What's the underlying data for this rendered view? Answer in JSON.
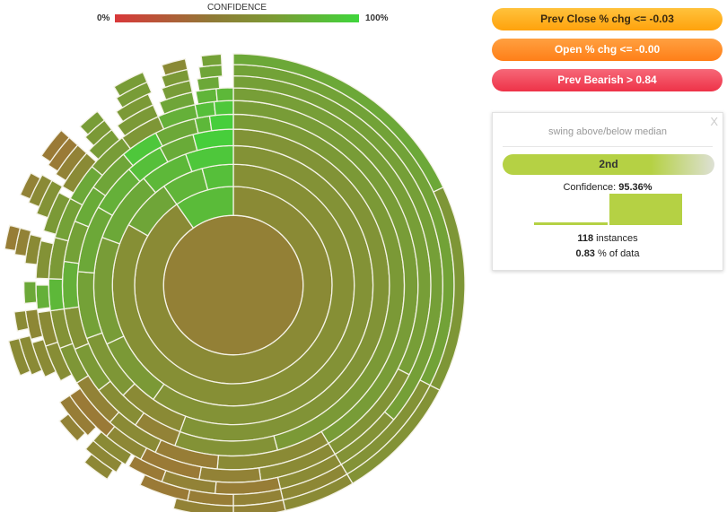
{
  "chart_data": {
    "type": "sunburst",
    "legend": {
      "title": "CONFIDENCE",
      "min_label": "0%",
      "max_label": "100%",
      "colors": [
        "#d9383a",
        "#8a8a35",
        "#3fd63c"
      ]
    },
    "rings": [
      [
        [
          0,
          360,
          0.44
        ]
      ],
      [
        [
          0,
          325,
          0.5
        ],
        [
          325,
          360,
          0.82
        ]
      ],
      [
        [
          0,
          300,
          0.53
        ],
        [
          300,
          325,
          0.68
        ],
        [
          325,
          345,
          0.78
        ],
        [
          345,
          360,
          0.85
        ]
      ],
      [
        [
          0,
          215,
          0.55
        ],
        [
          215,
          245,
          0.6
        ],
        [
          245,
          290,
          0.62
        ],
        [
          290,
          320,
          0.7
        ],
        [
          320,
          340,
          0.8
        ],
        [
          340,
          360,
          0.9
        ]
      ],
      [
        [
          0,
          200,
          0.56
        ],
        [
          200,
          225,
          0.5
        ],
        [
          225,
          250,
          0.58
        ],
        [
          250,
          275,
          0.65
        ],
        [
          275,
          300,
          0.7
        ],
        [
          300,
          318,
          0.75
        ],
        [
          318,
          332,
          0.85
        ],
        [
          332,
          345,
          0.72
        ],
        [
          345,
          360,
          0.95
        ]
      ],
      [
        [
          0,
          165,
          0.6
        ],
        [
          165,
          200,
          0.55
        ],
        [
          200,
          215,
          0.45
        ],
        [
          215,
          232,
          0.52
        ],
        [
          232,
          248,
          0.6
        ],
        [
          248,
          262,
          0.55
        ],
        [
          262,
          278,
          0.75
        ],
        [
          278,
          292,
          0.65
        ],
        [
          292,
          305,
          0.72
        ],
        [
          305,
          320,
          0.68
        ],
        [
          320,
          333,
          0.9
        ],
        [
          333,
          347,
          0.7
        ],
        [
          347,
          352,
          0.8
        ],
        [
          352,
          360,
          0.95
        ]
      ],
      [
        [
          0,
          149,
          0.62
        ],
        [
          149,
          185,
          0.5
        ],
        [
          185,
          205,
          0.42
        ],
        [
          205,
          222,
          0.5
        ],
        [
          222,
          238,
          0.45
        ],
        [
          238,
          250,
          0.58
        ],
        [
          250,
          262,
          0.55
        ],
        [
          262,
          272,
          0.8
        ],
        [
          272,
          285,
          0.6
        ],
        [
          285,
          298,
          0.65
        ],
        [
          298,
          310,
          0.7
        ],
        [
          310,
          323,
          0.62
        ],
        [
          323,
          336,
          0.58
        ],
        [
          336,
          348,
          0.75
        ],
        [
          348,
          354,
          0.85
        ],
        [
          354,
          360,
          0.9
        ]
      ],
      [
        [
          0,
          117,
          0.63
        ],
        [
          117,
          149,
          0.56
        ],
        [
          149,
          172,
          0.5
        ],
        [
          172,
          190,
          0.45
        ],
        [
          190,
          208,
          0.4
        ],
        [
          208,
          220,
          0.48
        ],
        [
          220,
          236,
          0.4
        ],
        [
          241,
          252,
          0.52
        ],
        [
          252,
          262,
          0.5
        ],
        [
          263,
          270,
          0.75
        ],
        [
          272,
          283,
          0.55
        ],
        [
          286,
          298,
          0.6
        ],
        [
          300,
          312,
          0.5
        ],
        [
          313,
          322,
          0.62
        ],
        [
          324,
          336,
          0.6
        ],
        [
          338,
          348,
          0.68
        ],
        [
          349,
          355,
          0.78
        ],
        [
          355,
          360,
          0.8
        ]
      ],
      [
        [
          0,
          130,
          0.64
        ],
        [
          130,
          149,
          0.55
        ],
        [
          149,
          167,
          0.5
        ],
        [
          167,
          185,
          0.42
        ],
        [
          185,
          200,
          0.45
        ],
        [
          200,
          210,
          0.4
        ],
        [
          211,
          222,
          0.5
        ],
        [
          224,
          236,
          0.42
        ],
        [
          244,
          254,
          0.5
        ],
        [
          255,
          263,
          0.48
        ],
        [
          265,
          271,
          0.7
        ],
        [
          276,
          284,
          0.5
        ],
        [
          290,
          300,
          0.55
        ],
        [
          302,
          312,
          0.45
        ],
        [
          315,
          322,
          0.6
        ],
        [
          326,
          336,
          0.6
        ],
        [
          340,
          348,
          0.62
        ],
        [
          350,
          356,
          0.7
        ]
      ],
      [
        [
          0,
          117,
          0.66
        ],
        [
          117,
          149,
          0.55
        ],
        [
          149,
          167,
          0.48
        ],
        [
          167,
          180,
          0.45
        ],
        [
          180,
          192,
          0.42
        ],
        [
          192,
          205,
          0.4
        ],
        [
          212,
          222,
          0.48
        ],
        [
          225,
          232,
          0.45
        ],
        [
          246,
          256,
          0.5
        ],
        [
          258,
          263,
          0.5
        ],
        [
          278,
          285,
          0.45
        ],
        [
          292,
          300,
          0.5
        ],
        [
          303,
          312,
          0.4
        ],
        [
          316,
          322,
          0.62
        ],
        [
          328,
          337,
          0.62
        ],
        [
          341,
          348,
          0.6
        ],
        [
          351,
          357,
          0.68
        ]
      ],
      [
        [
          0,
          65,
          0.7
        ],
        [
          65,
          117,
          0.58
        ],
        [
          117,
          149,
          0.55
        ],
        [
          149,
          167,
          0.5
        ],
        [
          167,
          180,
          0.45
        ],
        [
          180,
          195,
          0.45
        ],
        [
          213,
          220,
          0.48
        ],
        [
          247,
          256,
          0.5
        ],
        [
          279,
          285,
          0.42
        ],
        [
          293,
          299,
          0.45
        ],
        [
          304,
          312,
          0.4
        ],
        [
          329,
          337,
          0.62
        ],
        [
          342,
          348,
          0.5
        ],
        [
          352,
          357,
          0.65
        ]
      ]
    ]
  },
  "filters": [
    {
      "label": "Prev Close % chg <= -0.03"
    },
    {
      "label": "Open % chg <= -0.00"
    },
    {
      "label": "Prev Bearish > 0.84"
    }
  ],
  "panel": {
    "close": "X",
    "title": "swing above/below median",
    "selected_label": "2nd",
    "confidence_label": "Confidence:",
    "confidence_value": "95.36%",
    "histogram": [
      0.09,
      1.0
    ],
    "instances_value": "118",
    "instances_label": "instances",
    "pct_value": "0.83",
    "pct_label": "% of data"
  }
}
